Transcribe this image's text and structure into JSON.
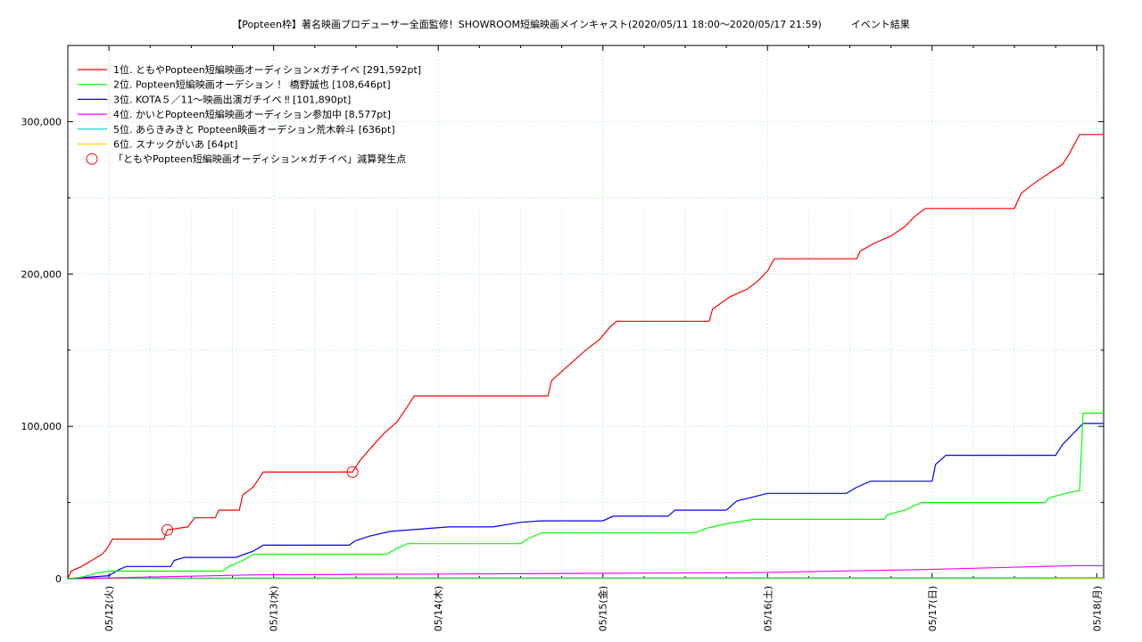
{
  "chart_data": {
    "type": "line",
    "title": "【Popteen枠】著名映画プロデューサー全面監修！SHOWROOM短編映画メインキャスト(2020/05/11 18:00〜2020/05/17 21:59)　　　イベント結果",
    "xlabel": "",
    "ylabel": "",
    "xlim": [
      "05/11 18:00",
      "05/18 01:00"
    ],
    "ylim": [
      0,
      350000
    ],
    "x_ticks": [
      "05/12(火)",
      "05/13(水)",
      "05/14(木)",
      "05/15(金)",
      "05/16(土)",
      "05/17(日)",
      "05/18(月)"
    ],
    "y_ticks": [
      "0",
      "100,000",
      "200,000",
      "300,000"
    ],
    "grid": true,
    "legend_position": "top-left",
    "series": [
      {
        "name": "1位. ともやPopteen短編映画オーディション×ガチイベ [291,592pt]",
        "color": "#ff0000",
        "points": [
          [
            "05/11 18:00",
            0
          ],
          [
            "05/11 18:30",
            5000
          ],
          [
            "05/11 20:00",
            8000
          ],
          [
            "05/11 21:30",
            12000
          ],
          [
            "05/11 23:00",
            16000
          ],
          [
            "05/11 23:45",
            20000
          ],
          [
            "05/12 00:30",
            26000
          ],
          [
            "05/12 08:00",
            26000
          ],
          [
            "05/12 08:30",
            32000
          ],
          [
            "05/12 11:30",
            34000
          ],
          [
            "05/12 12:30",
            40000
          ],
          [
            "05/12 15:30",
            40000
          ],
          [
            "05/12 16:00",
            45000
          ],
          [
            "05/12 19:00",
            45000
          ],
          [
            "05/12 19:30",
            55000
          ],
          [
            "05/12 21:00",
            60000
          ],
          [
            "05/12 22:30",
            70000
          ],
          [
            "05/13 11:30",
            70000
          ],
          [
            "05/13 12:30",
            77000
          ],
          [
            "05/13 14:00",
            85000
          ],
          [
            "05/13 16:00",
            95000
          ],
          [
            "05/13 18:00",
            103000
          ],
          [
            "05/13 19:30",
            113000
          ],
          [
            "05/13 20:30",
            120000
          ],
          [
            "05/14 16:00",
            120000
          ],
          [
            "05/14 16:30",
            130000
          ],
          [
            "05/14 18:30",
            138000
          ],
          [
            "05/14 21:30",
            150000
          ],
          [
            "05/14 23:30",
            157000
          ],
          [
            "05/15 01:00",
            165000
          ],
          [
            "05/15 02:00",
            169000
          ],
          [
            "05/15 15:30",
            169000
          ],
          [
            "05/15 16:00",
            177000
          ],
          [
            "05/15 18:30",
            185000
          ],
          [
            "05/15 21:00",
            190000
          ],
          [
            "05/15 22:30",
            195000
          ],
          [
            "05/16 00:00",
            202000
          ],
          [
            "05/16 01:00",
            210000
          ],
          [
            "05/16 13:00",
            210000
          ],
          [
            "05/16 13:30",
            215000
          ],
          [
            "05/16 15:30",
            220000
          ],
          [
            "05/16 18:00",
            225000
          ],
          [
            "05/16 20:00",
            231000
          ],
          [
            "05/16 21:30",
            238000
          ],
          [
            "05/16 23:00",
            243000
          ],
          [
            "05/17 12:00",
            243000
          ],
          [
            "05/17 13:00",
            253000
          ],
          [
            "05/17 15:00",
            260000
          ],
          [
            "05/17 17:00",
            266000
          ],
          [
            "05/17 19:00",
            272000
          ],
          [
            "05/17 20:00",
            279000
          ],
          [
            "05/17 21:30",
            291592
          ],
          [
            "05/18 01:00",
            291592
          ]
        ]
      },
      {
        "name": "2位. Popteen短編映画オーデション ！ 橋野誠也 [108,646pt]",
        "color": "#00ff00",
        "points": [
          [
            "05/11 18:00",
            0
          ],
          [
            "05/11 20:00",
            1000
          ],
          [
            "05/11 22:30",
            4000
          ],
          [
            "05/12 00:00",
            5000
          ],
          [
            "05/12 16:30",
            5000
          ],
          [
            "05/12 17:30",
            8000
          ],
          [
            "05/12 19:30",
            12000
          ],
          [
            "05/12 21:00",
            16000
          ],
          [
            "05/13 16:30",
            16000
          ],
          [
            "05/13 18:00",
            20000
          ],
          [
            "05/13 19:30",
            23000
          ],
          [
            "05/14 12:00",
            23000
          ],
          [
            "05/14 13:00",
            26000
          ],
          [
            "05/14 15:00",
            30000
          ],
          [
            "05/15 13:30",
            30000
          ],
          [
            "05/15 15:00",
            33000
          ],
          [
            "05/15 18:00",
            36000
          ],
          [
            "05/15 22:00",
            39000
          ],
          [
            "05/16 17:00",
            39000
          ],
          [
            "05/16 17:30",
            42000
          ],
          [
            "05/16 20:00",
            45000
          ],
          [
            "05/16 22:30",
            50000
          ],
          [
            "05/17 16:30",
            50000
          ],
          [
            "05/17 17:00",
            53000
          ],
          [
            "05/17 19:30",
            56000
          ],
          [
            "05/17 21:30",
            58000
          ],
          [
            "05/17 22:00",
            108646
          ],
          [
            "05/18 01:00",
            108646
          ]
        ]
      },
      {
        "name": "3位. KOTA５／11〜映画出演ガチイベ ‼ [101,890pt]",
        "color": "#0000ff",
        "points": [
          [
            "05/11 18:00",
            0
          ],
          [
            "05/12 00:00",
            2000
          ],
          [
            "05/12 01:30",
            6000
          ],
          [
            "05/12 02:30",
            8000
          ],
          [
            "05/12 09:00",
            8000
          ],
          [
            "05/12 09:30",
            12000
          ],
          [
            "05/12 11:00",
            14000
          ],
          [
            "05/12 18:30",
            14000
          ],
          [
            "05/12 21:00",
            18000
          ],
          [
            "05/12 22:30",
            22000
          ],
          [
            "05/13 11:00",
            22000
          ],
          [
            "05/13 12:00",
            25000
          ],
          [
            "05/13 14:00",
            28000
          ],
          [
            "05/13 17:00",
            31000
          ],
          [
            "05/14 01:30",
            34000
          ],
          [
            "05/14 08:00",
            34000
          ],
          [
            "05/14 12:00",
            37000
          ],
          [
            "05/14 15:00",
            38000
          ],
          [
            "05/15 00:00",
            38000
          ],
          [
            "05/15 01:30",
            41000
          ],
          [
            "05/15 09:30",
            41000
          ],
          [
            "05/15 10:30",
            45000
          ],
          [
            "05/15 18:00",
            45000
          ],
          [
            "05/15 19:30",
            51000
          ],
          [
            "05/16 00:00",
            56000
          ],
          [
            "05/16 11:30",
            56000
          ],
          [
            "05/16 13:00",
            60000
          ],
          [
            "05/16 15:00",
            64000
          ],
          [
            "05/17 00:00",
            64000
          ],
          [
            "05/17 00:30",
            75000
          ],
          [
            "05/17 02:00",
            81000
          ],
          [
            "05/17 18:00",
            81000
          ],
          [
            "05/17 19:00",
            88000
          ],
          [
            "05/17 20:30",
            95000
          ],
          [
            "05/17 22:00",
            101890
          ],
          [
            "05/18 01:00",
            101890
          ]
        ]
      },
      {
        "name": "4位. かいとPopteen短編映画オーディション参加中 [8,577pt]",
        "color": "#ff00ff",
        "points": [
          [
            "05/11 18:00",
            0
          ],
          [
            "05/12 00:00",
            500
          ],
          [
            "05/12 21:00",
            2500
          ],
          [
            "05/15 22:30",
            4000
          ],
          [
            "05/16 23:00",
            6000
          ],
          [
            "05/17 21:00",
            8577
          ],
          [
            "05/18 01:00",
            8577
          ]
        ]
      },
      {
        "name": "5位. あらきみきと Popteen映画オーデション荒木幹斗 [636pt]",
        "color": "#00cccc",
        "points": [
          [
            "05/11 18:00",
            0
          ],
          [
            "05/12 00:00",
            400
          ],
          [
            "05/18 01:00",
            636
          ]
        ]
      },
      {
        "name": "6位. スナックがいあ [64pt]",
        "color": "#ffcc00",
        "points": [
          [
            "05/11 18:00",
            0
          ],
          [
            "05/18 01:00",
            64
          ]
        ]
      }
    ],
    "markers": {
      "name": "「ともやPopteen短編映画オーディション×ガチイベ」減算発生点",
      "color": "#ff0000",
      "points": [
        [
          "05/12 08:30",
          32000
        ],
        [
          "05/13 11:30",
          70000
        ]
      ]
    }
  }
}
